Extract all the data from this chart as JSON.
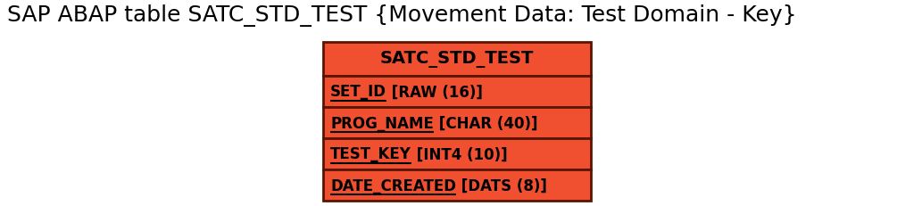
{
  "title": "SAP ABAP table SATC_STD_TEST {Movement Data: Test Domain - Key}",
  "title_fontsize": 18,
  "title_fontweight": "normal",
  "table_name": "SATC_STD_TEST",
  "fields": [
    {
      "name": "SET_ID",
      "type": " [RAW (16)]"
    },
    {
      "name": "PROG_NAME",
      "type": " [CHAR (40)]"
    },
    {
      "name": "TEST_KEY",
      "type": " [INT4 (10)]"
    },
    {
      "name": "DATE_CREATED",
      "type": " [DATS (8)]"
    }
  ],
  "box_color": "#F05030",
  "border_color": "#5A1500",
  "text_color": "#000000",
  "header_fontsize": 14,
  "field_fontsize": 12,
  "background_color": "#ffffff",
  "fig_width": 10.05,
  "fig_height": 2.32,
  "dpi": 100
}
